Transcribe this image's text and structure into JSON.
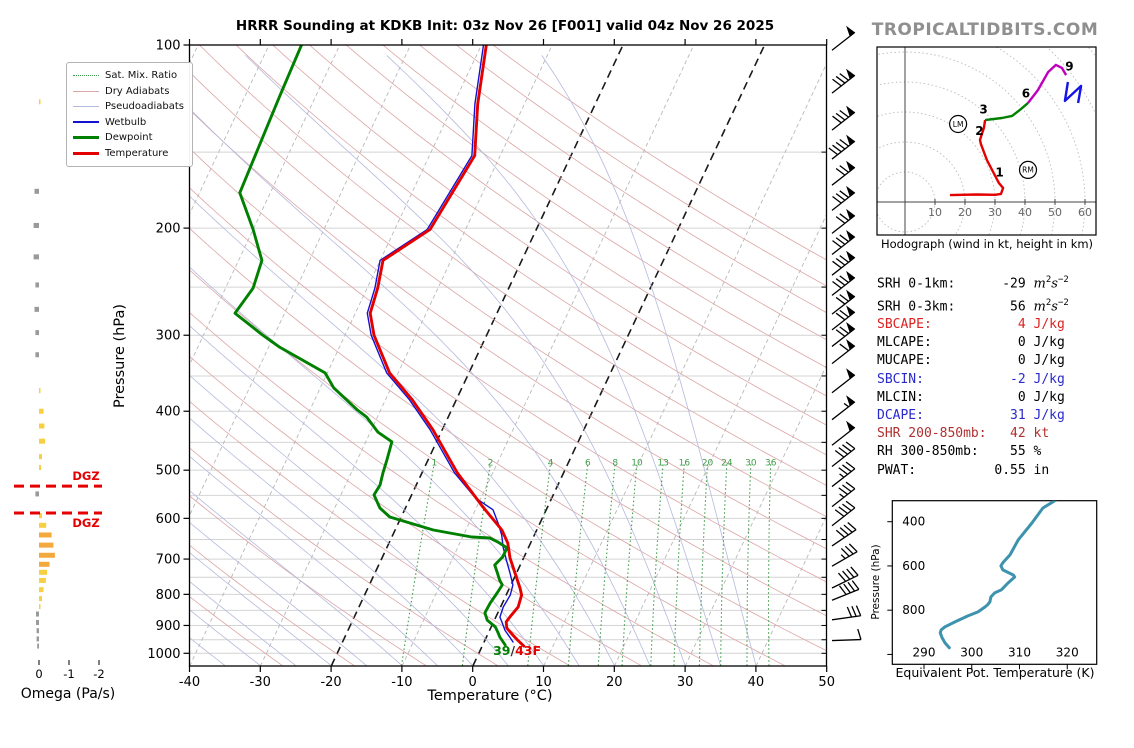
{
  "title": "HRRR Sounding at KDKB Init: 03z Nov 26 [F001] valid 04z Nov 26 2025",
  "watermark": "TROPICALTIDBITS.COM",
  "colors": {
    "temperature": "#e50000",
    "dewpoint": "#008000",
    "wetbulb": "#1313cf",
    "dry_adiabat": "#dca6a6",
    "pseudoadiabat": "#b4bade",
    "mixing_ratio": "#3f9b48",
    "isotherm": "#b8b8b8",
    "isotherm_highlight": "#1a1a1a",
    "gridline": "#d4d4d4",
    "dgz": "#e50000",
    "theta_e_curve": "#3d93ad",
    "omega_yellow": "#f8cf40",
    "omega_orange": "#f4a93c",
    "omega_gray": "#9a9a9a",
    "hodo_red": "#e50000",
    "hodo_green": "#008000",
    "hodo_purple": "#bf00bf",
    "hodo_blue": "#1414e6"
  },
  "legend": [
    {
      "label": "Sat. Mix. Ratio",
      "style": "dotted-green"
    },
    {
      "label": "Dry Adiabats",
      "style": "thin-red"
    },
    {
      "label": "Pseudoadiabats",
      "style": "thin-blue"
    },
    {
      "label": "Wetbulb",
      "style": "blue"
    },
    {
      "label": "Dewpoint",
      "style": "thick-green"
    },
    {
      "label": "Temperature",
      "style": "thick-red"
    }
  ],
  "chart_data": [
    {
      "type": "line",
      "name": "skewt",
      "title": "HRRR Sounding at KDKB Init: 03z Nov 26 [F001] valid 04z Nov 26 2025",
      "xlabel": "Temperature (°C)",
      "ylabel": "Pressure (hPa)",
      "x_ticks": [
        -40,
        -30,
        -20,
        -10,
        0,
        10,
        20,
        30,
        40,
        50
      ],
      "p_ticks": [
        100,
        200,
        300,
        400,
        500,
        600,
        700,
        800,
        900,
        1000
      ],
      "xlim": [
        -40,
        50
      ],
      "plim": [
        100,
        1048
      ],
      "isotherm_highlights_c": [
        0,
        -20
      ],
      "mixing_ratio_labels": [
        1,
        2,
        4,
        6,
        8,
        10,
        13,
        16,
        20,
        24,
        30,
        36
      ],
      "surface_label": {
        "dew_f": "39",
        "slash": "/",
        "temp_f": "43F"
      },
      "dgz": {
        "label": "DGZ",
        "pressures": [
          531,
          588
        ]
      },
      "temperature": [
        [
          100,
          -39.3
        ],
        [
          125,
          -36.6
        ],
        [
          152,
          -33.6
        ],
        [
          201,
          -35.0
        ],
        [
          226,
          -39.6
        ],
        [
          251,
          -38.5
        ],
        [
          276,
          -37.9
        ],
        [
          300,
          -35.9
        ],
        [
          346,
          -31.2
        ],
        [
          383,
          -26.2
        ],
        [
          429,
          -21.3
        ],
        [
          505,
          -15.0
        ],
        [
          575,
          -9.1
        ],
        [
          627,
          -4.9
        ],
        [
          659,
          -3.2
        ],
        [
          697,
          -1.9
        ],
        [
          738,
          -0.2
        ],
        [
          781,
          1.5
        ],
        [
          802,
          2.2
        ],
        [
          839,
          2.5
        ],
        [
          872,
          2.0
        ],
        [
          888,
          1.8
        ],
        [
          909,
          2.3
        ],
        [
          933,
          3.6
        ],
        [
          951,
          4.6
        ],
        [
          973,
          5.9
        ]
      ],
      "dewpoint": [
        [
          100,
          -65.4
        ],
        [
          121,
          -65.1
        ],
        [
          175,
          -64.3
        ],
        [
          201,
          -60.0
        ],
        [
          226,
          -56.7
        ],
        [
          251,
          -56.1
        ],
        [
          276,
          -57.0
        ],
        [
          300,
          -51.6
        ],
        [
          314,
          -48.4
        ],
        [
          346,
          -40.3
        ],
        [
          366,
          -38.1
        ],
        [
          398,
          -33.3
        ],
        [
          409,
          -31.5
        ],
        [
          433,
          -28.9
        ],
        [
          449,
          -26.3
        ],
        [
          481,
          -25.8
        ],
        [
          505,
          -25.5
        ],
        [
          529,
          -25.1
        ],
        [
          549,
          -25.3
        ],
        [
          577,
          -23.6
        ],
        [
          597,
          -21.6
        ],
        [
          627,
          -14.6
        ],
        [
          644,
          -8.7
        ],
        [
          646,
          -6.1
        ],
        [
          656,
          -4.7
        ],
        [
          671,
          -3.0
        ],
        [
          694,
          -3.0
        ],
        [
          716,
          -3.6
        ],
        [
          735,
          -2.8
        ],
        [
          758,
          -1.9
        ],
        [
          772,
          -1.2
        ],
        [
          796,
          -1.4
        ],
        [
          827,
          -1.7
        ],
        [
          858,
          -1.8
        ],
        [
          882,
          -1.0
        ],
        [
          905,
          0.6
        ],
        [
          923,
          1.3
        ],
        [
          940,
          1.9
        ],
        [
          969,
          3.2
        ]
      ],
      "wetbulb": [
        [
          100,
          -39.7
        ],
        [
          125,
          -37.0
        ],
        [
          152,
          -34.0
        ],
        [
          201,
          -35.4
        ],
        [
          226,
          -40.0
        ],
        [
          251,
          -38.9
        ],
        [
          276,
          -38.3
        ],
        [
          300,
          -36.3
        ],
        [
          346,
          -31.6
        ],
        [
          383,
          -26.6
        ],
        [
          429,
          -21.7
        ],
        [
          505,
          -15.4
        ],
        [
          555,
          -10.8
        ],
        [
          581,
          -7.5
        ],
        [
          611,
          -5.9
        ],
        [
          639,
          -4.6
        ],
        [
          669,
          -3.6
        ],
        [
          702,
          -2.3
        ],
        [
          738,
          -0.9
        ],
        [
          772,
          0.3
        ],
        [
          802,
          0.6
        ],
        [
          839,
          0.4
        ],
        [
          872,
          0.6
        ],
        [
          891,
          1.3
        ],
        [
          917,
          2.2
        ],
        [
          940,
          3.3
        ],
        [
          958,
          4.1
        ]
      ]
    },
    {
      "type": "bar",
      "name": "omega",
      "xlabel": "Omega (Pa/s)",
      "x_ticks": [
        0,
        -1,
        -2
      ],
      "dgz_label": "DGZ",
      "bars": [
        {
          "p": 124,
          "w": -0.05,
          "c": "y"
        },
        {
          "p": 174,
          "w": 0.15,
          "c": "g"
        },
        {
          "p": 198,
          "w": 0.18,
          "c": "g"
        },
        {
          "p": 223,
          "w": 0.18,
          "c": "g"
        },
        {
          "p": 248,
          "w": 0.12,
          "c": "g"
        },
        {
          "p": 272,
          "w": 0.15,
          "c": "g"
        },
        {
          "p": 297,
          "w": 0.12,
          "c": "g"
        },
        {
          "p": 323,
          "w": 0.12,
          "c": "g"
        },
        {
          "p": 370,
          "w": -0.05,
          "c": "y"
        },
        {
          "p": 400,
          "w": -0.15,
          "c": "y"
        },
        {
          "p": 423,
          "w": -0.18,
          "c": "y"
        },
        {
          "p": 448,
          "w": -0.2,
          "c": "y"
        },
        {
          "p": 475,
          "w": -0.1,
          "c": "y"
        },
        {
          "p": 495,
          "w": -0.07,
          "c": "y"
        },
        {
          "p": 547,
          "w": 0.12,
          "c": "g"
        },
        {
          "p": 594,
          "w": -0.1,
          "c": "y"
        },
        {
          "p": 616,
          "w": -0.24,
          "c": "y"
        },
        {
          "p": 639,
          "w": -0.42,
          "c": "o"
        },
        {
          "p": 664,
          "w": -0.48,
          "c": "o"
        },
        {
          "p": 690,
          "w": -0.53,
          "c": "o"
        },
        {
          "p": 714,
          "w": -0.35,
          "c": "o"
        },
        {
          "p": 736,
          "w": -0.27,
          "c": "y"
        },
        {
          "p": 759,
          "w": -0.23,
          "c": "y"
        },
        {
          "p": 786,
          "w": -0.15,
          "c": "y"
        },
        {
          "p": 813,
          "w": -0.1,
          "c": "y"
        },
        {
          "p": 838,
          "w": -0.04,
          "c": "y"
        },
        {
          "p": 862,
          "w": 0.1,
          "c": "g"
        },
        {
          "p": 890,
          "w": 0.1,
          "c": "g"
        },
        {
          "p": 918,
          "w": 0.08,
          "c": "g"
        },
        {
          "p": 947,
          "w": 0.08,
          "c": "g"
        },
        {
          "p": 973,
          "w": 0.06,
          "c": "g"
        }
      ]
    },
    {
      "type": "line",
      "name": "wind_barbs_kt",
      "levels": [
        {
          "p": 102,
          "spd": 50,
          "ang": 38
        },
        {
          "p": 120,
          "spd": 80,
          "ang": 38
        },
        {
          "p": 138,
          "spd": 80,
          "ang": 38
        },
        {
          "p": 154,
          "spd": 90,
          "ang": 38
        },
        {
          "p": 170,
          "spd": 70,
          "ang": 38
        },
        {
          "p": 187,
          "spd": 80,
          "ang": 38
        },
        {
          "p": 204,
          "spd": 70,
          "ang": 38
        },
        {
          "p": 221,
          "spd": 80,
          "ang": 38
        },
        {
          "p": 239,
          "spd": 80,
          "ang": 38
        },
        {
          "p": 258,
          "spd": 80,
          "ang": 38
        },
        {
          "p": 277,
          "spd": 70,
          "ang": 38
        },
        {
          "p": 294,
          "spd": 70,
          "ang": 38
        },
        {
          "p": 313,
          "spd": 70,
          "ang": 38
        },
        {
          "p": 334,
          "spd": 60,
          "ang": 38
        },
        {
          "p": 373,
          "spd": 50,
          "ang": 38
        },
        {
          "p": 413,
          "spd": 55,
          "ang": 38
        },
        {
          "p": 455,
          "spd": 50,
          "ang": 38
        },
        {
          "p": 493,
          "spd": 40,
          "ang": 38
        },
        {
          "p": 532,
          "spd": 35,
          "ang": 38
        },
        {
          "p": 574,
          "spd": 35,
          "ang": 38
        },
        {
          "p": 617,
          "spd": 40,
          "ang": 38
        },
        {
          "p": 666,
          "spd": 40,
          "ang": 34
        },
        {
          "p": 719,
          "spd": 35,
          "ang": 30
        },
        {
          "p": 781,
          "spd": 40,
          "ang": 26
        },
        {
          "p": 818,
          "spd": 40,
          "ang": 22
        },
        {
          "p": 881,
          "spd": 30,
          "ang": 8
        },
        {
          "p": 953,
          "spd": 10,
          "ang": 2
        }
      ]
    },
    {
      "type": "line",
      "name": "hodograph",
      "caption": "Hodograph (wind in kt, height in km)",
      "ring_step_kt": 10,
      "x_ticks": [
        10,
        20,
        30,
        40,
        50,
        60
      ],
      "segments": {
        "red": [
          [
            15,
            2.3
          ],
          [
            24,
            2.5
          ],
          [
            30,
            2.4
          ],
          [
            32,
            2.7
          ],
          [
            32.7,
            4.7
          ],
          [
            31.3,
            6.3
          ],
          [
            27.3,
            14
          ],
          [
            25.3,
            19.3
          ],
          [
            25,
            20.7
          ],
          [
            26.3,
            24.7
          ],
          [
            26.7,
            27.3
          ]
        ],
        "green": [
          [
            26.7,
            27.3
          ],
          [
            32.3,
            28
          ],
          [
            35.7,
            28.7
          ],
          [
            38.3,
            30.7
          ],
          [
            41,
            33
          ]
        ],
        "purple": [
          [
            41,
            33
          ],
          [
            44.3,
            37.3
          ],
          [
            47.7,
            43.3
          ],
          [
            50.3,
            45.7
          ],
          [
            52.3,
            44.7
          ],
          [
            53.7,
            42.3
          ]
        ],
        "blue": [
          [
            54.3,
            40
          ],
          [
            53.3,
            33.7
          ],
          [
            58.7,
            38.7
          ],
          [
            57.7,
            33
          ]
        ]
      },
      "height_labels": [
        {
          "t": "1",
          "u": 31.5,
          "v": 8.5
        },
        {
          "t": "2",
          "u": 24.8,
          "v": 22.3
        },
        {
          "t": "3",
          "u": 26.2,
          "v": 29.5
        },
        {
          "t": "6",
          "u": 40.3,
          "v": 34.8
        },
        {
          "t": "9",
          "u": 54.8,
          "v": 43.8
        }
      ],
      "markers": [
        {
          "t": "LM",
          "u": 17.7,
          "v": 26.0
        },
        {
          "t": "RM",
          "u": 41.0,
          "v": 10.7
        }
      ]
    },
    {
      "type": "table",
      "name": "stats",
      "rows": [
        {
          "label": "SRH 0-1km:",
          "value": "-29",
          "unit": "m2s-2",
          "color": "#000000"
        },
        {
          "label": "SRH 0-3km:",
          "value": "56",
          "unit": "m2s-2",
          "color": "#000000"
        },
        {
          "label": "SBCAPE:",
          "value": "4",
          "unit": "J/kg",
          "color": "#dd2222"
        },
        {
          "label": "MLCAPE:",
          "value": "0",
          "unit": "J/kg",
          "color": "#000000"
        },
        {
          "label": "MUCAPE:",
          "value": "0",
          "unit": "J/kg",
          "color": "#000000"
        },
        {
          "label": "SBCIN:",
          "value": "-2",
          "unit": "J/kg",
          "color": "#2929cc"
        },
        {
          "label": "MLCIN:",
          "value": "0",
          "unit": "J/kg",
          "color": "#000000"
        },
        {
          "label": "DCAPE:",
          "value": "31",
          "unit": "J/kg",
          "color": "#2929cc"
        },
        {
          "label": "SHR 200-850mb:",
          "value": "42",
          "unit": "kt",
          "color": "#b03030"
        },
        {
          "label": "RH 300-850mb:",
          "value": "55",
          "unit": "%",
          "color": "#000000"
        },
        {
          "label": "PWAT:",
          "value": "0.55",
          "unit": "in",
          "color": "#000000"
        }
      ]
    },
    {
      "type": "line",
      "name": "theta_e",
      "xlabel": "Equivalent Pot. Temperature (K)",
      "ylabel": "Pressure (hPa)",
      "x_ticks": [
        290,
        300,
        310,
        320
      ],
      "y_ticks": [
        400,
        600,
        800
      ],
      "points": [
        [
          317.4,
          305
        ],
        [
          314.9,
          338
        ],
        [
          312.6,
          406
        ],
        [
          309.7,
          483
        ],
        [
          308.0,
          550
        ],
        [
          306.5,
          586
        ],
        [
          306.1,
          600
        ],
        [
          306.5,
          618
        ],
        [
          308.7,
          641
        ],
        [
          309.0,
          650
        ],
        [
          307.6,
          677
        ],
        [
          306.2,
          708
        ],
        [
          304.8,
          722
        ],
        [
          304.0,
          740
        ],
        [
          303.8,
          762
        ],
        [
          303.3,
          776
        ],
        [
          302.8,
          785
        ],
        [
          301.3,
          808
        ],
        [
          299.2,
          826
        ],
        [
          296.5,
          853
        ],
        [
          294.4,
          875
        ],
        [
          293.6,
          889
        ],
        [
          293.4,
          902
        ],
        [
          293.8,
          925
        ],
        [
          294.4,
          948
        ],
        [
          295.3,
          970
        ]
      ]
    }
  ]
}
